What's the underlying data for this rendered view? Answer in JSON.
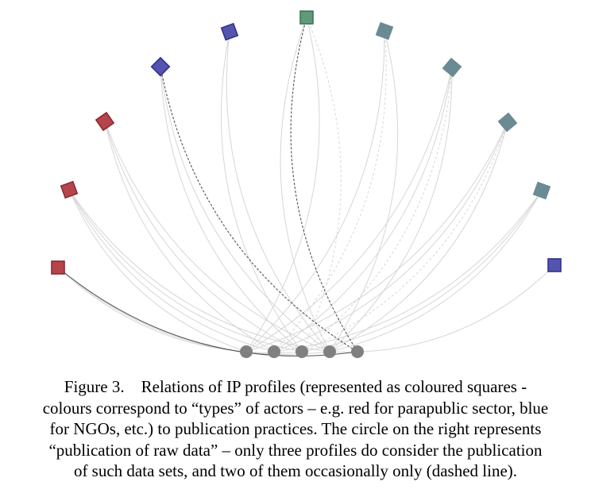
{
  "figure": {
    "colors": {
      "parapublic_red": "#b5454a",
      "ngo_blue": "#5454b0",
      "green": "#5f9a7a",
      "slate": "#6a8a94",
      "practice_node": "#808080",
      "edge_light": "#d6d6d6",
      "edge_dark": "#555555"
    },
    "profiles": [
      {
        "id": "p1",
        "color": "#b5454a",
        "stroke": "#8a2a30"
      },
      {
        "id": "p2",
        "color": "#b5454a",
        "stroke": "#8a2a30"
      },
      {
        "id": "p3",
        "color": "#b5454a",
        "stroke": "#8a2a30"
      },
      {
        "id": "p4",
        "color": "#5454b0",
        "stroke": "#33338a"
      },
      {
        "id": "p5",
        "color": "#5454b0",
        "stroke": "#33338a"
      },
      {
        "id": "p6",
        "color": "#5f9a7a",
        "stroke": "#3e7558"
      },
      {
        "id": "p7",
        "color": "#6a8a94",
        "stroke": "#6a8a94"
      },
      {
        "id": "p8",
        "color": "#6a8a94",
        "stroke": "#6a8a94"
      },
      {
        "id": "p9",
        "color": "#6a8a94",
        "stroke": "#6a8a94"
      },
      {
        "id": "p10",
        "color": "#6a8a94",
        "stroke": "#6a8a94"
      },
      {
        "id": "p11",
        "color": "#5454b0",
        "stroke": "#33338a"
      }
    ],
    "practices": [
      "c1",
      "c2",
      "c3",
      "c4",
      "c5"
    ],
    "raw_data_practice": "c5",
    "edges": [
      {
        "from": "p1",
        "to": "c5",
        "style": "dark-solid"
      },
      {
        "from": "p4",
        "to": "c5",
        "style": "dark-dashed"
      },
      {
        "from": "p6",
        "to": "c5",
        "style": "dark-dashed"
      },
      {
        "from": "p1",
        "to": "c3",
        "style": "light"
      },
      {
        "from": "p1",
        "to": "c4",
        "style": "light"
      },
      {
        "from": "p2",
        "to": "c1",
        "style": "light"
      },
      {
        "from": "p2",
        "to": "c2",
        "style": "light"
      },
      {
        "from": "p2",
        "to": "c3",
        "style": "light"
      },
      {
        "from": "p2",
        "to": "c4",
        "style": "light"
      },
      {
        "from": "p3",
        "to": "c2",
        "style": "light"
      },
      {
        "from": "p3",
        "to": "c3",
        "style": "light"
      },
      {
        "from": "p3",
        "to": "c4",
        "style": "light"
      },
      {
        "from": "p4",
        "to": "c3",
        "style": "light"
      },
      {
        "from": "p4",
        "to": "c4",
        "style": "light"
      },
      {
        "from": "p5",
        "to": "c3",
        "style": "light"
      },
      {
        "from": "p5",
        "to": "c4",
        "style": "light"
      },
      {
        "from": "p6",
        "to": "c1",
        "style": "light"
      },
      {
        "from": "p6",
        "to": "c3",
        "style": "light-dashed"
      },
      {
        "from": "p6",
        "to": "c4",
        "style": "light"
      },
      {
        "from": "p7",
        "to": "c1",
        "style": "light"
      },
      {
        "from": "p7",
        "to": "c2",
        "style": "light-dashed"
      },
      {
        "from": "p7",
        "to": "c4",
        "style": "light"
      },
      {
        "from": "p8",
        "to": "c1",
        "style": "light"
      },
      {
        "from": "p8",
        "to": "c2",
        "style": "light"
      },
      {
        "from": "p8",
        "to": "c3",
        "style": "light-dashed"
      },
      {
        "from": "p8",
        "to": "c4",
        "style": "light"
      },
      {
        "from": "p9",
        "to": "c1",
        "style": "light"
      },
      {
        "from": "p9",
        "to": "c2",
        "style": "light"
      },
      {
        "from": "p9",
        "to": "c3",
        "style": "light-dashed"
      },
      {
        "from": "p9",
        "to": "c4",
        "style": "light"
      },
      {
        "from": "p10",
        "to": "c2",
        "style": "light"
      },
      {
        "from": "p10",
        "to": "c3",
        "style": "light"
      },
      {
        "from": "p10",
        "to": "c4",
        "style": "light"
      },
      {
        "from": "p11",
        "to": "c4",
        "style": "light"
      }
    ]
  },
  "caption": {
    "lines": [
      "Figure 3.    Relations of IP profiles (represented as coloured squares -",
      "colours correspond to “types” of actors – e.g. red for parapublic sector, blue",
      "for NGOs, etc.) to publication practices. The circle on the right represents",
      "“publication of raw data” – only three profiles do consider the publication",
      "of such data sets, and two of them occasionally only (dashed line)."
    ]
  }
}
